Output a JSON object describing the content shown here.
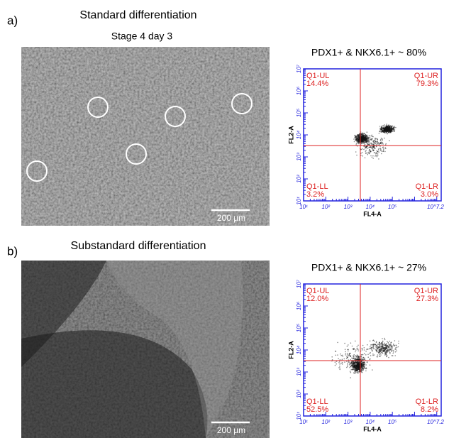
{
  "panels": [
    {
      "label": "a)",
      "title": "Standard differentiation",
      "subtitle": "Stage 4 day 3",
      "scale_bar": "200 µm",
      "flow": {
        "title": "PDX1+ & NKX6.1+ ~ 80%",
        "x_label": "FL4-A",
        "y_label": "FL2-A",
        "x_ticks": [
          "10¹",
          "10²",
          "10³",
          "10⁴",
          "10⁵",
          "10^7.2"
        ],
        "y_ticks": [
          "10¹",
          "10²",
          "10³",
          "10⁴",
          "10⁵",
          "10⁶",
          "10⁷"
        ],
        "quadrants": {
          "UL": {
            "name": "Q1-UL",
            "value": "14.4%"
          },
          "UR": {
            "name": "Q1-UR",
            "value": "79.3%"
          },
          "LL": {
            "name": "Q1-LL",
            "value": "3.2%"
          },
          "LR": {
            "name": "Q1-LR",
            "value": "3.0%"
          }
        }
      }
    },
    {
      "label": "b)",
      "title": "Substandard differentiation",
      "scale_bar": "200 µm",
      "flow": {
        "title": "PDX1+ & NKX6.1+ ~ 27%",
        "x_label": "FL4-A",
        "y_label": "FL2-A",
        "x_ticks": [
          "10¹",
          "10²",
          "10³",
          "10⁴",
          "10⁵",
          "10^7.2"
        ],
        "y_ticks": [
          "10¹",
          "10²",
          "10³",
          "10⁴",
          "10⁵",
          "10⁶",
          "10⁷"
        ],
        "quadrants": {
          "UL": {
            "name": "Q1-UL",
            "value": "12.0%"
          },
          "UR": {
            "name": "Q1-UR",
            "value": "27.3%"
          },
          "LL": {
            "name": "Q1-LL",
            "value": "52.5%"
          },
          "LR": {
            "name": "Q1-LR",
            "value": "8.2%"
          }
        }
      }
    }
  ]
}
